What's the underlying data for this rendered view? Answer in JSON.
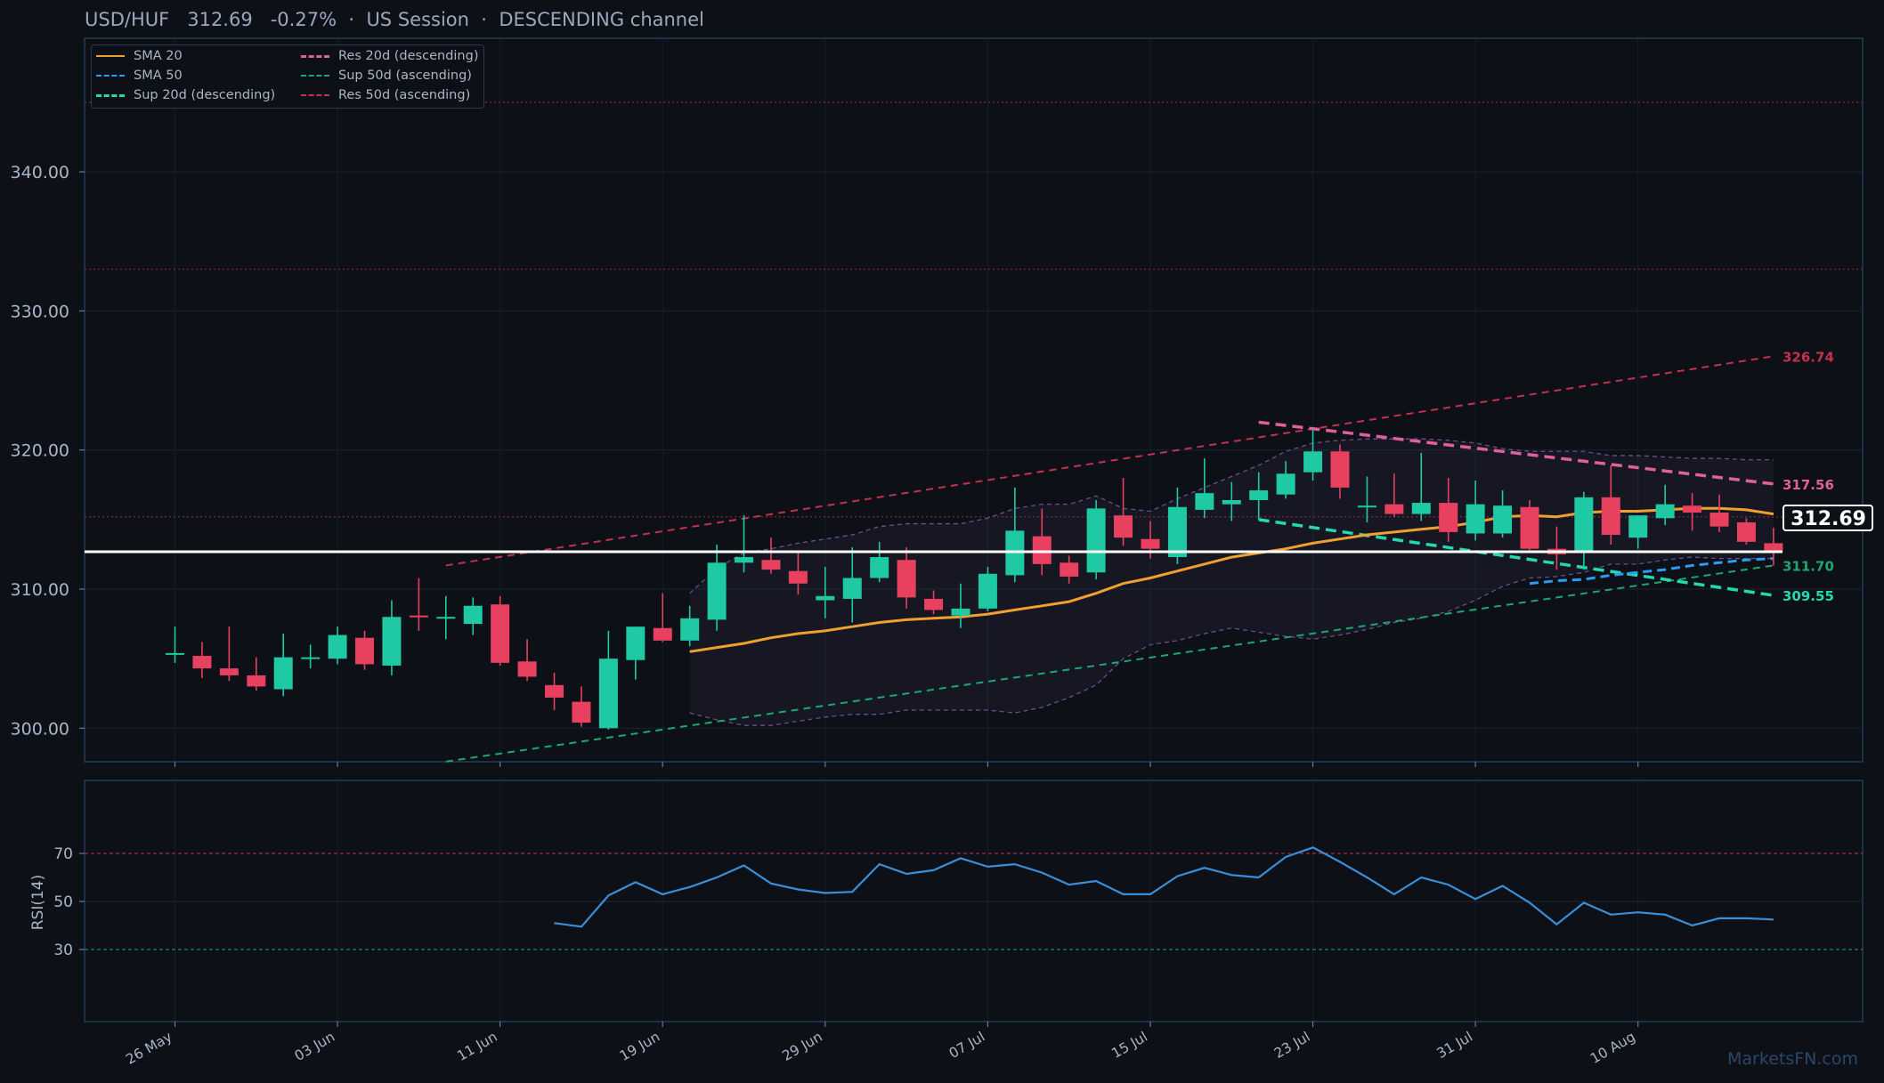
{
  "header": {
    "symbol": "USD/HUF",
    "price": "312.69",
    "change": "-0.27%",
    "sep": "·",
    "session": "US Session",
    "channel": "DESCENDING channel"
  },
  "colors": {
    "background": "#0d1017",
    "up": "#1ec9a4",
    "down": "#e8405f",
    "sma20": "#f0a030",
    "sma50": "#2a9df4",
    "res_desc": "#e0609a",
    "sup_desc": "#25d8b0",
    "res_asc": "#c4304f",
    "sup_asc": "#1aa870",
    "rsi": "#3a8fd8"
  },
  "watermark": "MarketsFN.com",
  "price_tag": "312.69",
  "chart_data": [
    {
      "type": "candlestick",
      "ylim": [
        295,
        347
      ],
      "y_ticks": [
        "300.00",
        "310.00",
        "320.00",
        "330.00",
        "340.00"
      ],
      "x_ticks": [
        "26 May",
        "03 Jun",
        "11 Jun",
        "19 Jun",
        "29 Jun",
        "07 Jul",
        "15 Jul",
        "23 Jul",
        "31 Jul",
        "10 Aug"
      ],
      "legend": {
        "placement": "top-left",
        "entries": [
          "SMA 20",
          "SMA 50",
          "Sup 20d (descending)",
          "Res 20d (descending)",
          "Sup 50d (ascending)",
          "Res 50d (ascending)"
        ]
      },
      "candles": [
        {
          "o": 305.4,
          "h": 307.3,
          "l": 304.7,
          "c": 305.4
        },
        {
          "o": 305.2,
          "h": 306.2,
          "l": 303.6,
          "c": 304.3
        },
        {
          "o": 304.3,
          "h": 307.3,
          "l": 303.4,
          "c": 303.8
        },
        {
          "o": 303.8,
          "h": 305.1,
          "l": 302.7,
          "c": 303.0
        },
        {
          "o": 302.8,
          "h": 306.8,
          "l": 302.3,
          "c": 305.1
        },
        {
          "o": 305.0,
          "h": 306.0,
          "l": 304.3,
          "c": 305.1
        },
        {
          "o": 305.0,
          "h": 307.3,
          "l": 304.6,
          "c": 306.7
        },
        {
          "o": 306.5,
          "h": 307.0,
          "l": 304.2,
          "c": 304.6
        },
        {
          "o": 304.5,
          "h": 309.2,
          "l": 303.8,
          "c": 308.0
        },
        {
          "o": 308.1,
          "h": 310.8,
          "l": 307.0,
          "c": 308.0
        },
        {
          "o": 308.0,
          "h": 309.5,
          "l": 306.4,
          "c": 308.0
        },
        {
          "o": 307.5,
          "h": 309.4,
          "l": 306.7,
          "c": 308.8
        },
        {
          "o": 308.9,
          "h": 309.5,
          "l": 304.5,
          "c": 304.7
        },
        {
          "o": 304.8,
          "h": 306.4,
          "l": 303.4,
          "c": 303.7
        },
        {
          "o": 303.1,
          "h": 304.0,
          "l": 301.3,
          "c": 302.2
        },
        {
          "o": 301.9,
          "h": 303.0,
          "l": 300.1,
          "c": 300.4
        },
        {
          "o": 300.0,
          "h": 307.0,
          "l": 299.9,
          "c": 305.0
        },
        {
          "o": 304.9,
          "h": 307.3,
          "l": 303.5,
          "c": 307.3
        },
        {
          "o": 307.2,
          "h": 309.7,
          "l": 306.2,
          "c": 306.3
        },
        {
          "o": 306.3,
          "h": 308.8,
          "l": 305.9,
          "c": 307.9
        },
        {
          "o": 307.8,
          "h": 313.2,
          "l": 307.0,
          "c": 311.9
        },
        {
          "o": 311.9,
          "h": 315.3,
          "l": 311.2,
          "c": 312.3
        },
        {
          "o": 312.1,
          "h": 313.7,
          "l": 311.1,
          "c": 311.4
        },
        {
          "o": 311.3,
          "h": 312.7,
          "l": 309.6,
          "c": 310.4
        },
        {
          "o": 309.2,
          "h": 311.6,
          "l": 307.9,
          "c": 309.5
        },
        {
          "o": 309.3,
          "h": 313.0,
          "l": 307.6,
          "c": 310.8
        },
        {
          "o": 310.8,
          "h": 313.4,
          "l": 310.5,
          "c": 312.3
        },
        {
          "o": 312.1,
          "h": 313.0,
          "l": 308.6,
          "c": 309.4
        },
        {
          "o": 309.3,
          "h": 309.9,
          "l": 308.2,
          "c": 308.5
        },
        {
          "o": 308.1,
          "h": 310.4,
          "l": 307.2,
          "c": 308.6
        },
        {
          "o": 308.6,
          "h": 311.6,
          "l": 308.4,
          "c": 311.1
        },
        {
          "o": 311.0,
          "h": 317.3,
          "l": 310.5,
          "c": 314.2
        },
        {
          "o": 313.8,
          "h": 315.8,
          "l": 311.0,
          "c": 311.8
        },
        {
          "o": 311.9,
          "h": 312.4,
          "l": 310.4,
          "c": 310.9
        },
        {
          "o": 311.2,
          "h": 316.4,
          "l": 310.7,
          "c": 315.8
        },
        {
          "o": 315.3,
          "h": 318.0,
          "l": 313.1,
          "c": 313.7
        },
        {
          "o": 313.6,
          "h": 314.9,
          "l": 312.2,
          "c": 312.9
        },
        {
          "o": 312.3,
          "h": 317.3,
          "l": 311.8,
          "c": 315.9
        },
        {
          "o": 315.7,
          "h": 319.4,
          "l": 315.1,
          "c": 316.9
        },
        {
          "o": 316.1,
          "h": 317.7,
          "l": 314.9,
          "c": 316.4
        },
        {
          "o": 316.4,
          "h": 318.4,
          "l": 315.0,
          "c": 317.1
        },
        {
          "o": 316.8,
          "h": 319.2,
          "l": 316.5,
          "c": 318.3
        },
        {
          "o": 318.4,
          "h": 321.5,
          "l": 317.8,
          "c": 319.9
        },
        {
          "o": 319.9,
          "h": 320.4,
          "l": 316.5,
          "c": 317.3
        },
        {
          "o": 316.0,
          "h": 318.1,
          "l": 314.8,
          "c": 316.0
        },
        {
          "o": 316.1,
          "h": 318.3,
          "l": 315.2,
          "c": 315.4
        },
        {
          "o": 315.4,
          "h": 319.8,
          "l": 314.9,
          "c": 316.2
        },
        {
          "o": 316.2,
          "h": 318.0,
          "l": 313.4,
          "c": 314.1
        },
        {
          "o": 314.0,
          "h": 317.8,
          "l": 313.5,
          "c": 316.1
        },
        {
          "o": 314.0,
          "h": 317.1,
          "l": 313.7,
          "c": 316.0
        },
        {
          "o": 315.9,
          "h": 316.4,
          "l": 312.8,
          "c": 312.9
        },
        {
          "o": 312.9,
          "h": 314.5,
          "l": 311.4,
          "c": 312.5
        },
        {
          "o": 312.6,
          "h": 317.0,
          "l": 311.4,
          "c": 316.6
        },
        {
          "o": 316.6,
          "h": 318.9,
          "l": 313.2,
          "c": 313.9
        },
        {
          "o": 313.7,
          "h": 315.3,
          "l": 312.9,
          "c": 315.3
        },
        {
          "o": 315.1,
          "h": 317.5,
          "l": 314.6,
          "c": 316.1
        },
        {
          "o": 316.0,
          "h": 316.9,
          "l": 314.2,
          "c": 315.5
        },
        {
          "o": 315.5,
          "h": 316.8,
          "l": 314.1,
          "c": 314.5
        },
        {
          "o": 314.8,
          "h": 315.1,
          "l": 313.2,
          "c": 313.4
        },
        {
          "o": 313.3,
          "h": 314.4,
          "l": 311.7,
          "c": 312.7
        }
      ],
      "sma20": {
        "start": 19,
        "values": [
          305.5,
          305.8,
          306.1,
          306.5,
          306.8,
          307.0,
          307.3,
          307.6,
          307.8,
          307.9,
          308.0,
          308.2,
          308.5,
          308.8,
          309.1,
          309.7,
          310.4,
          310.8,
          311.3,
          311.8,
          312.3,
          312.6,
          312.9,
          313.3,
          313.6,
          313.9,
          314.1,
          314.3,
          314.5,
          314.8,
          315.2,
          315.3,
          315.2,
          315.5,
          315.6,
          315.6,
          315.7,
          315.8,
          315.8,
          315.7,
          315.4
        ]
      },
      "sma50": {
        "start": 50,
        "values": [
          310.4,
          310.6,
          310.7,
          311.0,
          311.2,
          311.4,
          311.7,
          311.9,
          312.1,
          312.2
        ]
      },
      "bollinger": {
        "start": 19,
        "upper": [
          309.7,
          311.5,
          312.6,
          312.9,
          313.3,
          313.6,
          313.9,
          314.5,
          314.7,
          314.7,
          314.7,
          315.1,
          315.8,
          316.1,
          316.1,
          316.7,
          315.8,
          315.6,
          316.5,
          317.3,
          318.1,
          318.9,
          319.9,
          320.5,
          320.7,
          320.8,
          320.8,
          320.8,
          320.7,
          320.5,
          320.1,
          319.9,
          319.9,
          319.9,
          319.6,
          319.6,
          319.5,
          319.4,
          319.4,
          319.3,
          319.3
        ],
        "lower": [
          301.1,
          300.6,
          300.2,
          300.2,
          300.5,
          300.8,
          301.0,
          301.0,
          301.3,
          301.3,
          301.3,
          301.3,
          301.1,
          301.5,
          302.2,
          303.1,
          305.0,
          306.0,
          306.3,
          306.8,
          307.2,
          306.9,
          306.6,
          306.4,
          306.7,
          307.1,
          307.6,
          307.9,
          308.4,
          309.2,
          310.2,
          310.8,
          310.9,
          311.2,
          311.8,
          311.8,
          312.1,
          312.3,
          312.2,
          312.2,
          312.2
        ]
      },
      "support_20d_desc": {
        "from": {
          "i": 40,
          "v": 315.0
        },
        "to": {
          "i": 59,
          "v": 309.55
        },
        "label": "309.55"
      },
      "resistance_20d_desc": {
        "from": {
          "i": 40,
          "v": 322.0
        },
        "to": {
          "i": 59,
          "v": 317.56
        },
        "label": "317.56"
      },
      "support_50d_asc": {
        "from": {
          "i": 10,
          "v": 297.6
        },
        "to": {
          "i": 59,
          "v": 311.7
        },
        "label": "311.70"
      },
      "resistance_50d_asc": {
        "from": {
          "i": 10,
          "v": 311.7
        },
        "to": {
          "i": 59,
          "v": 326.74
        },
        "label": "326.74"
      },
      "hlines_dotted": [
        345.0,
        333.0,
        315.2
      ],
      "last_price": 312.69
    },
    {
      "type": "line",
      "ylabel": "RSI(14)",
      "ylim": [
        0,
        100
      ],
      "y_ticks": [
        "30",
        "50",
        "70"
      ],
      "levels": [
        30,
        70
      ],
      "series": [
        {
          "start": 14,
          "values": [
            41.0,
            39.5,
            52.5,
            58.0,
            53.0,
            56.0,
            60.0,
            65.0,
            57.5,
            55.0,
            53.5,
            54.0,
            65.5,
            61.5,
            63.0,
            68.0,
            64.5,
            65.5,
            62.0,
            57.0,
            58.5,
            53.0,
            53.0,
            60.5,
            64.0,
            61.0,
            60.0,
            68.5,
            72.5,
            66.5,
            60.0,
            53.0,
            60.0,
            57.0,
            51.0,
            56.5,
            49.5,
            40.5,
            49.5,
            44.5,
            45.5,
            44.5,
            40.0,
            43.0,
            43.0,
            42.5
          ]
        }
      ]
    }
  ]
}
